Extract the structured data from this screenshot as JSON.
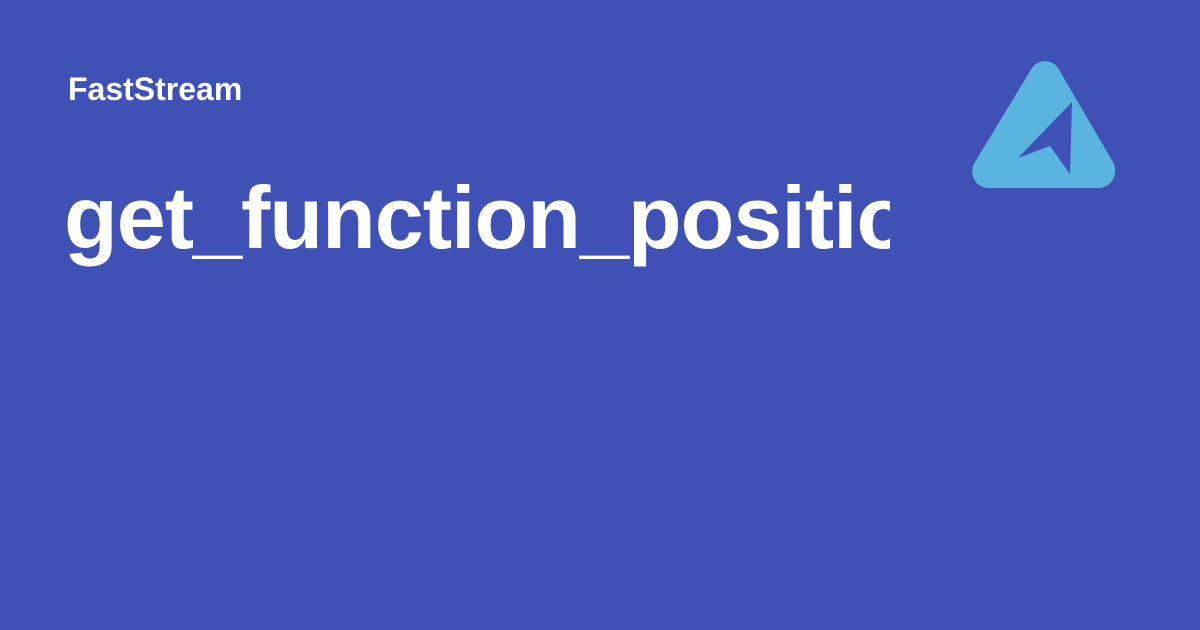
{
  "site_name": "FastStream",
  "page_title": "get_function_positio",
  "colors": {
    "background": "#3f51b5",
    "text": "#ffffff",
    "logo": "#5ab4e0"
  },
  "logo": {
    "icon": "faststream-logo-icon"
  }
}
